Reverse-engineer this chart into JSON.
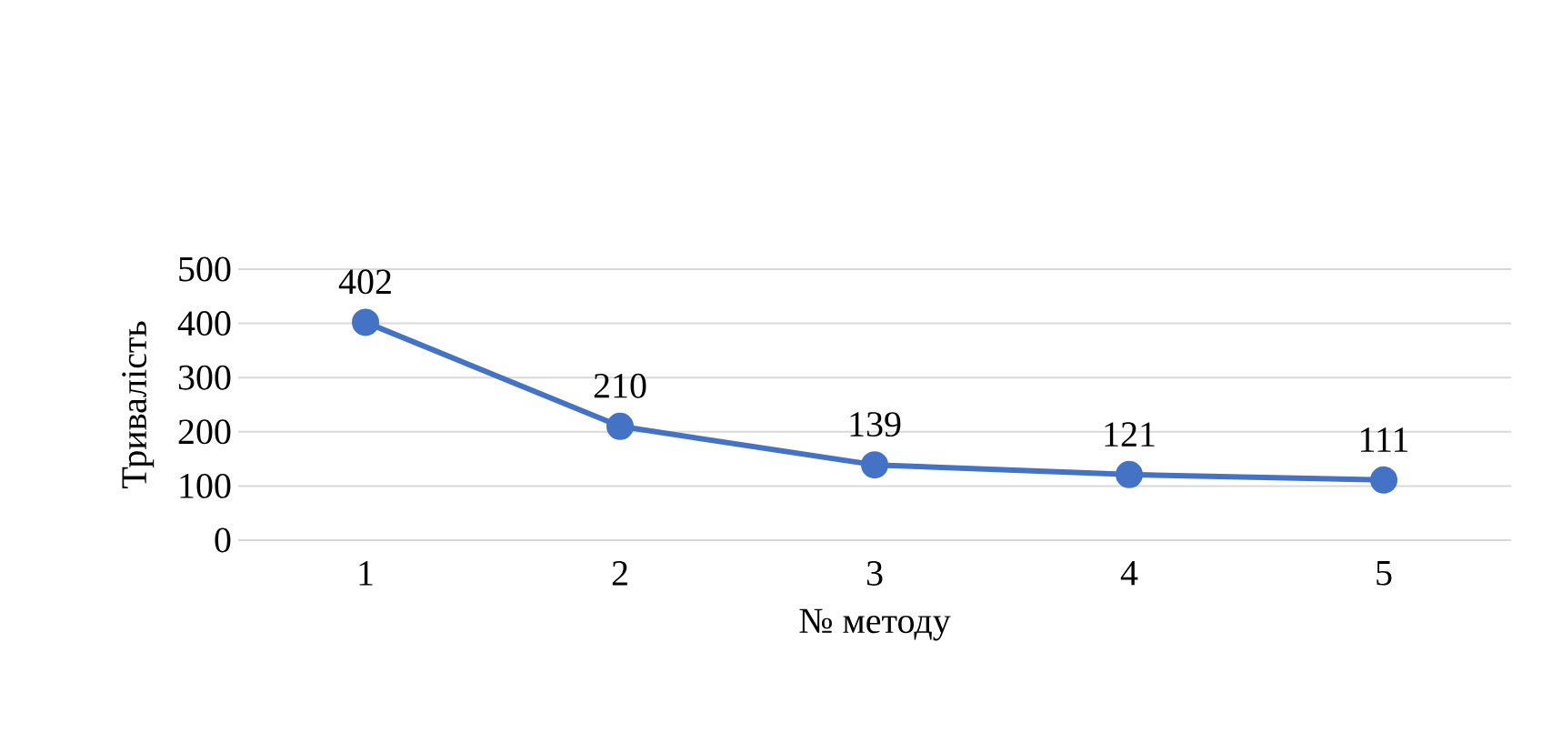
{
  "chart_data": {
    "type": "line",
    "xlabel": "№ методу",
    "ylabel": "Тривалість",
    "categories": [
      "1",
      "2",
      "3",
      "4",
      "5"
    ],
    "series": [
      {
        "color": "#4472c4",
        "values": [
          402,
          210,
          139,
          121,
          111
        ]
      }
    ],
    "ylim": [
      0,
      500
    ],
    "yticks": [
      0,
      100,
      200,
      300,
      400,
      500
    ],
    "grid": "y",
    "data_labels": true,
    "marker": "circle",
    "line_style": "solid"
  }
}
